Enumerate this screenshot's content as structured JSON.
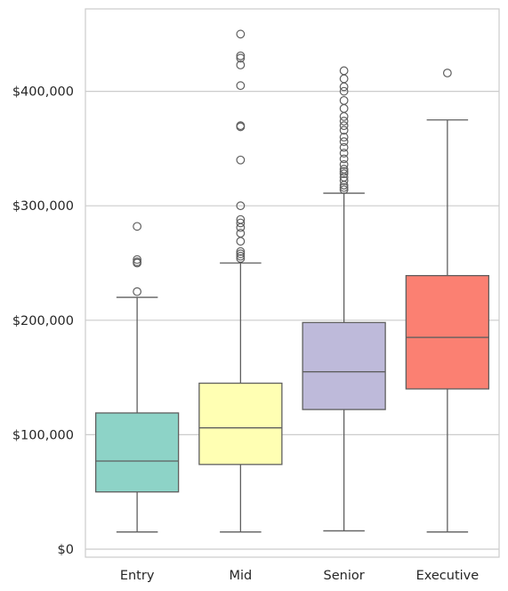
{
  "chart_data": {
    "type": "box",
    "title": "",
    "xlabel": "",
    "ylabel": "",
    "ylim": [
      -7000,
      472000
    ],
    "grid": "horizontal",
    "legend": "none",
    "y_ticks": [
      {
        "value": 0,
        "label": "$0"
      },
      {
        "value": 100000,
        "label": "$100,000"
      },
      {
        "value": 200000,
        "label": "$200,000"
      },
      {
        "value": 300000,
        "label": "$300,000"
      },
      {
        "value": 400000,
        "label": "$400,000"
      }
    ],
    "categories": [
      "Entry",
      "Mid",
      "Senior",
      "Executive"
    ],
    "boxes": [
      {
        "category": "Entry",
        "color": "#8dd3c7",
        "whisker_low": 15000,
        "q1": 50000,
        "median": 77000,
        "q3": 119000,
        "whisker_high": 220000,
        "outliers": [
          225000,
          250000,
          251000,
          253000,
          282000
        ]
      },
      {
        "category": "Mid",
        "color": "#ffffb3",
        "whisker_low": 15000,
        "q1": 74000,
        "median": 106000,
        "q3": 145000,
        "whisker_high": 250000,
        "outliers": [
          254000,
          256000,
          258000,
          260000,
          269000,
          276000,
          281000,
          285000,
          288000,
          300000,
          340000,
          369000,
          370000,
          405000,
          423000,
          429000,
          431000,
          450000
        ]
      },
      {
        "category": "Senior",
        "color": "#bebada",
        "whisker_low": 16000,
        "q1": 122000,
        "median": 155000,
        "q3": 198000,
        "whisker_high": 311000,
        "outliers": [
          314000,
          316000,
          318000,
          322000,
          325000,
          328000,
          330000,
          332000,
          336000,
          341000,
          346000,
          351000,
          356000,
          360000,
          366000,
          370000,
          374000,
          378000,
          385000,
          392000,
          400000,
          404000,
          411000,
          418000
        ]
      },
      {
        "category": "Executive",
        "color": "#fb8072",
        "whisker_low": 15000,
        "q1": 140000,
        "median": 185000,
        "q3": 239000,
        "whisker_high": 375000,
        "outliers": [
          416000
        ]
      }
    ],
    "colors": {
      "grid": "#cccccc",
      "frame": "#cccccc",
      "line": "#5f5f5f",
      "text": "#262626"
    }
  }
}
